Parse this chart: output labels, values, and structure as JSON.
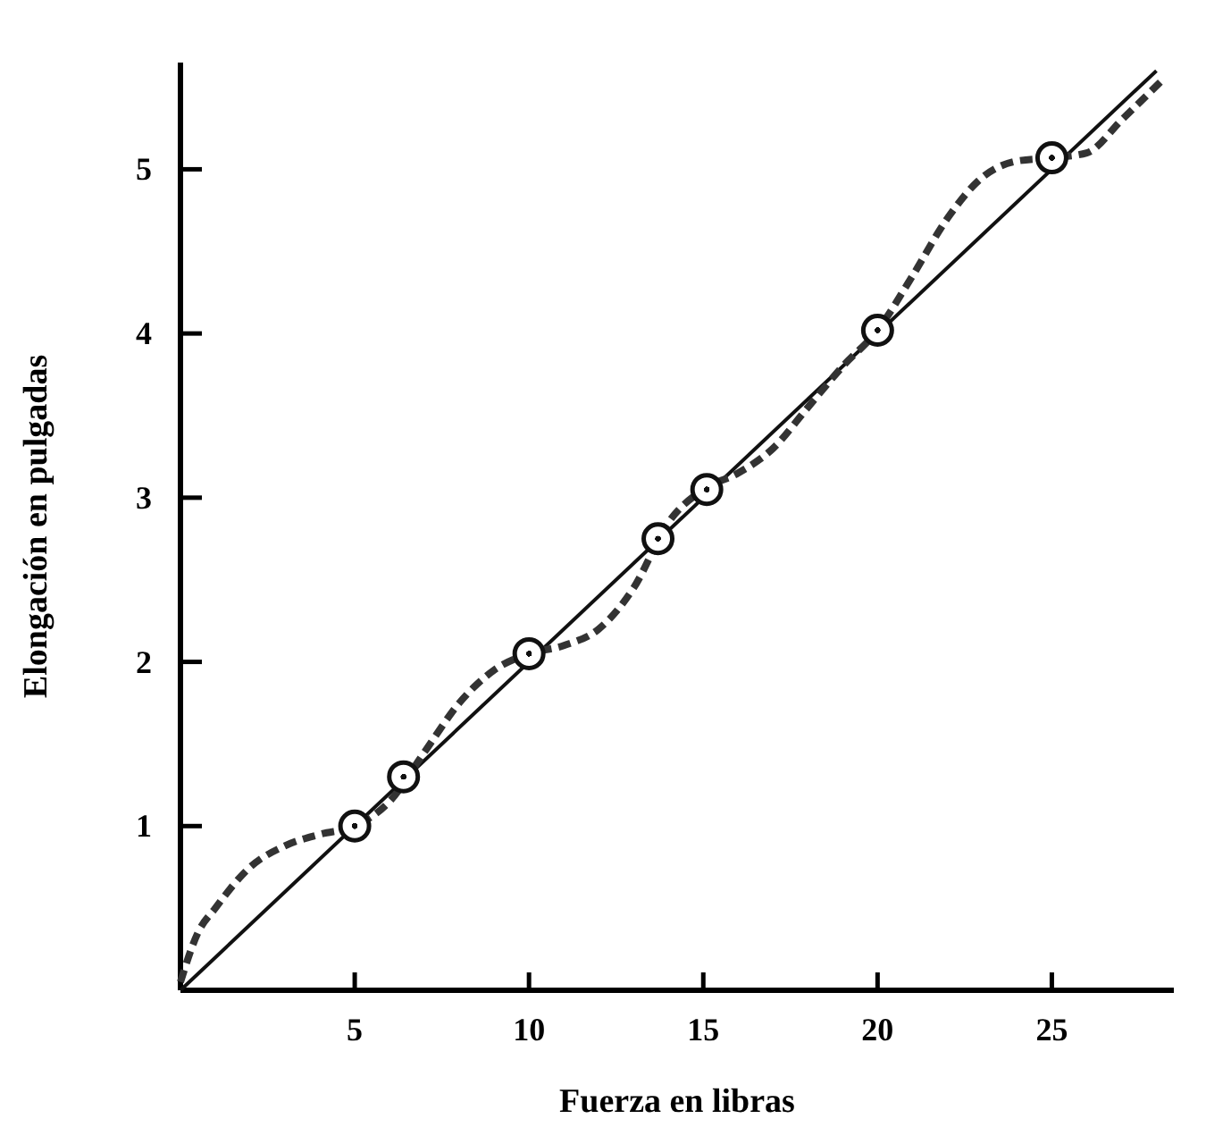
{
  "chart_data": {
    "type": "line",
    "xlabel": "Fuerza en libras",
    "ylabel": "Elongación en pulgadas",
    "xlim": [
      0,
      28.5
    ],
    "ylim": [
      0,
      5.65
    ],
    "xticks": [
      5,
      10,
      15,
      20,
      25
    ],
    "yticks": [
      1,
      2,
      3,
      4,
      5
    ],
    "grid": false,
    "series": [
      {
        "line_style": "solid",
        "color": "#111111",
        "x": [
          0,
          28
        ],
        "values": [
          0,
          5.6
        ]
      },
      {
        "line_style": "dashed",
        "color": "#333333",
        "x": [
          0,
          0.5,
          1,
          2,
          3,
          4,
          5,
          6,
          7,
          8,
          9,
          10,
          11,
          12,
          13,
          14,
          15,
          16,
          17,
          18,
          19,
          20,
          21,
          22,
          23,
          24,
          25,
          26,
          27,
          28.2
        ],
        "values": [
          0.05,
          0.35,
          0.5,
          0.75,
          0.88,
          0.95,
          1.0,
          1.15,
          1.45,
          1.75,
          1.95,
          2.05,
          2.1,
          2.2,
          2.45,
          2.85,
          3.05,
          3.15,
          3.3,
          3.55,
          3.8,
          4.02,
          4.35,
          4.7,
          4.95,
          5.05,
          5.07,
          5.1,
          5.3,
          5.55
        ]
      },
      {
        "type": "scatter",
        "marker": "circle",
        "color": "#111111",
        "x": [
          5,
          6.4,
          10,
          13.7,
          15.1,
          20,
          25
        ],
        "values": [
          1,
          1.3,
          2.05,
          2.75,
          3.05,
          4.02,
          5.07
        ]
      }
    ]
  }
}
